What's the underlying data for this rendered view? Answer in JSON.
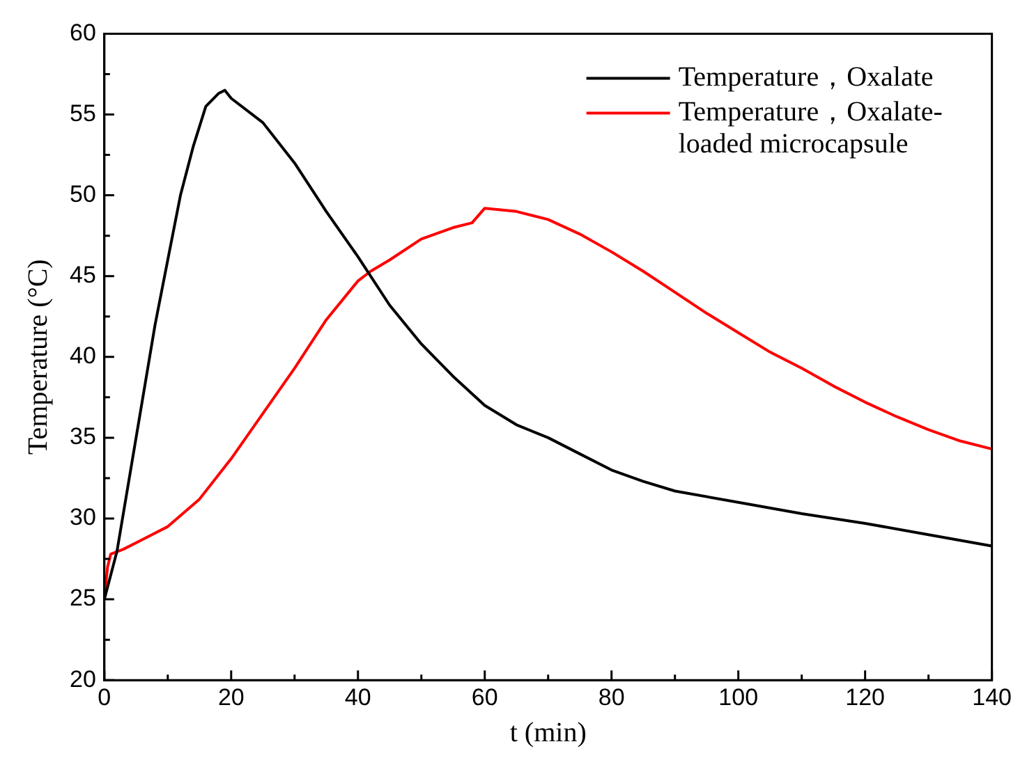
{
  "chart_data": {
    "type": "line",
    "xlabel": "t (min)",
    "ylabel": "Temperature (°C)",
    "xlim": [
      0,
      140
    ],
    "ylim": [
      20,
      60
    ],
    "xticks": [
      0,
      {
        "value": 10,
        "label": null
      },
      20,
      {
        "value": 30,
        "label": null
      },
      40,
      {
        "value": 50,
        "label": null
      },
      60,
      {
        "value": 70,
        "label": null
      },
      80,
      {
        "value": 90,
        "label": null
      },
      100,
      {
        "value": 110,
        "label": null
      },
      120,
      {
        "value": 130,
        "label": null
      },
      140
    ],
    "yticks": [
      20,
      {
        "value": 22.5,
        "label": null
      },
      25,
      {
        "value": 27.5,
        "label": null
      },
      30,
      {
        "value": 32.5,
        "label": null
      },
      35,
      {
        "value": 37.5,
        "label": null
      },
      40,
      {
        "value": 42.5,
        "label": null
      },
      45,
      {
        "value": 47.5,
        "label": null
      },
      50,
      {
        "value": 52.5,
        "label": null
      },
      55,
      {
        "value": 57.5,
        "label": null
      },
      60
    ],
    "grid": false,
    "legend": "top right",
    "marker": "none",
    "line_style": "solid",
    "series": [
      {
        "name": "Temperature，Oxalate",
        "color": "#000000",
        "x": [
          0,
          2,
          5,
          8,
          10,
          12,
          14,
          16,
          18,
          19,
          20,
          25,
          30,
          35,
          40,
          45,
          50,
          55,
          60,
          65,
          70,
          75,
          80,
          85,
          90,
          100,
          110,
          120,
          130,
          140
        ],
        "values": [
          25,
          28,
          35,
          42,
          46,
          50,
          53,
          55.5,
          56.3,
          56.5,
          56,
          54.5,
          52,
          49,
          46.2,
          43.2,
          40.8,
          38.8,
          37,
          35.8,
          35,
          34,
          33,
          32.3,
          31.7,
          31,
          30.3,
          29.7,
          29,
          28.3
        ]
      },
      {
        "name": "Temperature，Oxalate-loaded microcapsule",
        "color": "#ff0000",
        "x": [
          0,
          0.5,
          1,
          3,
          6,
          10,
          15,
          20,
          25,
          30,
          35,
          40,
          42,
          45,
          50,
          55,
          58,
          60,
          65,
          70,
          75,
          80,
          85,
          90,
          95,
          100,
          105,
          110,
          115,
          120,
          125,
          130,
          135,
          140
        ],
        "values": [
          25,
          27,
          27.8,
          28.1,
          28.7,
          29.5,
          31.2,
          33.7,
          36.5,
          39.3,
          42.3,
          44.7,
          45.3,
          46,
          47.3,
          48,
          48.3,
          49.2,
          49,
          48.5,
          47.6,
          46.5,
          45.3,
          44,
          42.7,
          41.5,
          40.3,
          39.3,
          38.2,
          37.2,
          36.3,
          35.5,
          34.8,
          34.3
        ]
      }
    ]
  }
}
